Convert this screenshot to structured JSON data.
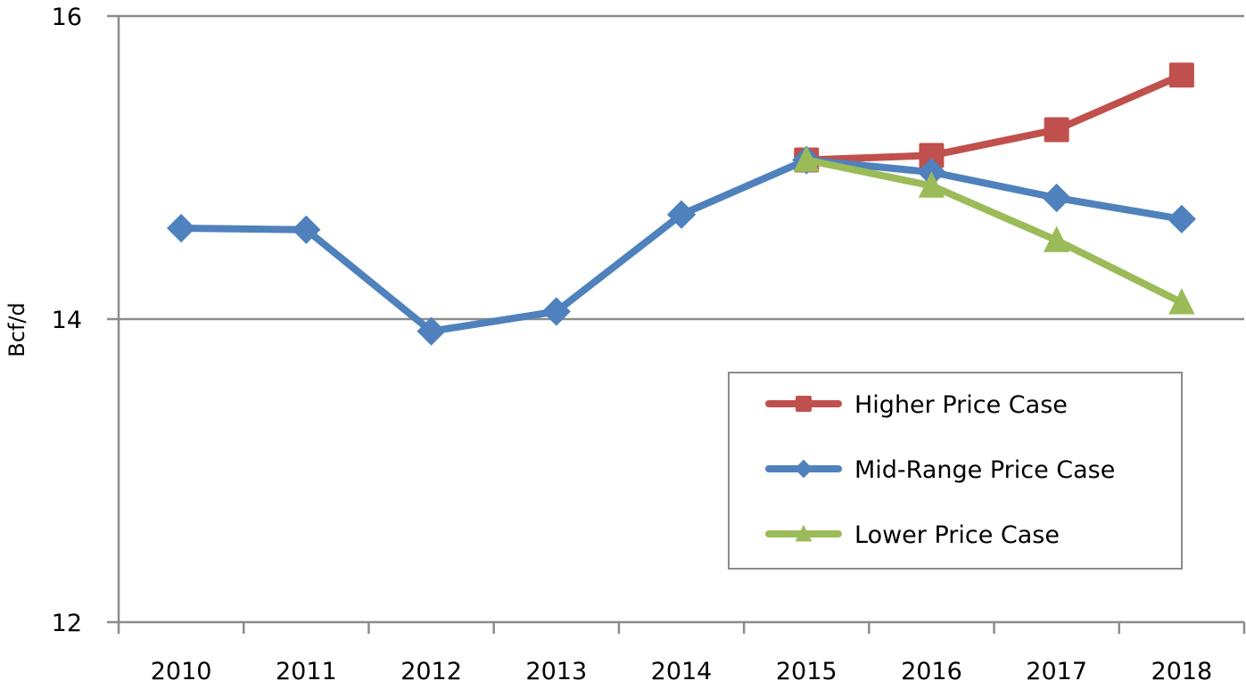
{
  "chart_data": {
    "type": "line",
    "title": "",
    "xlabel": "",
    "ylabel": "Bcf/d",
    "ylim": [
      12,
      16
    ],
    "yticks": [
      12,
      14,
      16
    ],
    "categories": [
      "2010",
      "2011",
      "2012",
      "2013",
      "2014",
      "2015",
      "2016",
      "2017",
      "2018"
    ],
    "grid": {
      "horizontal": true,
      "vertical": false
    },
    "legend_position": "lower-right inside plot",
    "series": [
      {
        "name": "Higher Price Case",
        "color": "#C0504D",
        "marker": "square",
        "values": [
          null,
          null,
          null,
          null,
          null,
          15.05,
          15.08,
          15.25,
          15.61
        ]
      },
      {
        "name": "Mid-Range Price Case",
        "color": "#4F81BD",
        "marker": "diamond",
        "values": [
          14.6,
          14.59,
          13.92,
          14.05,
          14.69,
          15.05,
          14.97,
          14.8,
          14.66
        ]
      },
      {
        "name": "Lower Price Case",
        "color": "#9BBB59",
        "marker": "triangle",
        "values": [
          null,
          null,
          null,
          null,
          null,
          15.05,
          14.88,
          14.52,
          14.11
        ]
      }
    ]
  },
  "colors": {
    "axis": "#8C8C8C",
    "grid": "#8C8C8C",
    "legend_border": "#8C8C8C"
  }
}
